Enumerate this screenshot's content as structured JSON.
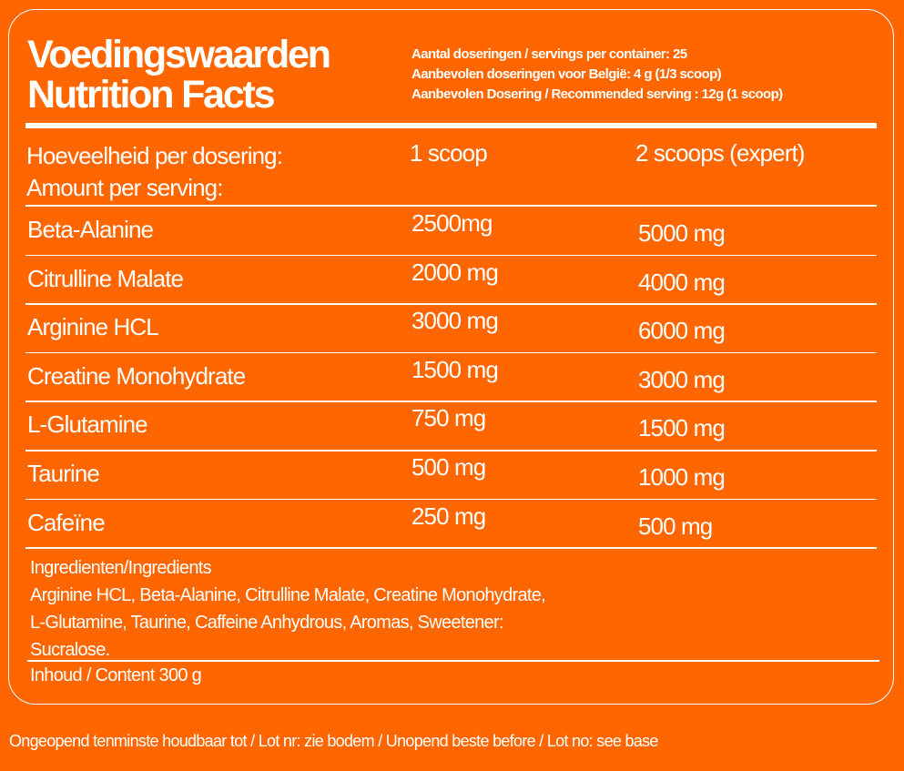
{
  "header": {
    "title_nl": "Voedingswaarden",
    "title_en": "Nutrition Facts",
    "info": [
      "Aantal doseringen / servings per container: 25",
      "Aanbevolen doseringen voor België: 4 g (1/3 scoop)",
      "Aanbevolen Dosering / Recommended serving : 12g (1 scoop)"
    ]
  },
  "table": {
    "header_label_nl": "Hoeveelheid per dosering:",
    "header_label_en": "Amount per serving:",
    "col1": "1 scoop",
    "col2": "2 scoops (expert)",
    "rows": [
      {
        "name": "Beta-Alanine",
        "v1": "2500mg",
        "v2": "5000 mg"
      },
      {
        "name": "Citrulline Malate",
        "v1": "2000 mg",
        "v2": "4000 mg"
      },
      {
        "name": "Arginine HCL",
        "v1": "3000 mg",
        "v2": "6000 mg"
      },
      {
        "name": "Creatine Monohydrate",
        "v1": "1500 mg",
        "v2": "3000 mg"
      },
      {
        "name": "L-Glutamine",
        "v1": "750 mg",
        "v2": "1500 mg"
      },
      {
        "name": "Taurine",
        "v1": "500 mg",
        "v2": "1000 mg"
      },
      {
        "name": "Cafeïne",
        "v1": "250 mg",
        "v2": "500 mg"
      }
    ]
  },
  "ingredients": {
    "heading": "Ingredienten/Ingredients",
    "lines": [
      "Arginine HCL, Beta-Alanine, Citrulline Malate, Creatine Monohydrate,",
      "L-Glutamine, Taurine, Caffeine Anhydrous, Aromas, Sweetener:",
      "Sucralose."
    ]
  },
  "content": "Inhoud / Content 300 g",
  "footer": "Ongeopend tenminste houdbaar tot / Lot nr: zie bodem / Unopend beste before / Lot no: see base",
  "colors": {
    "background": "#FF6600",
    "text": "#FFFFFF"
  }
}
